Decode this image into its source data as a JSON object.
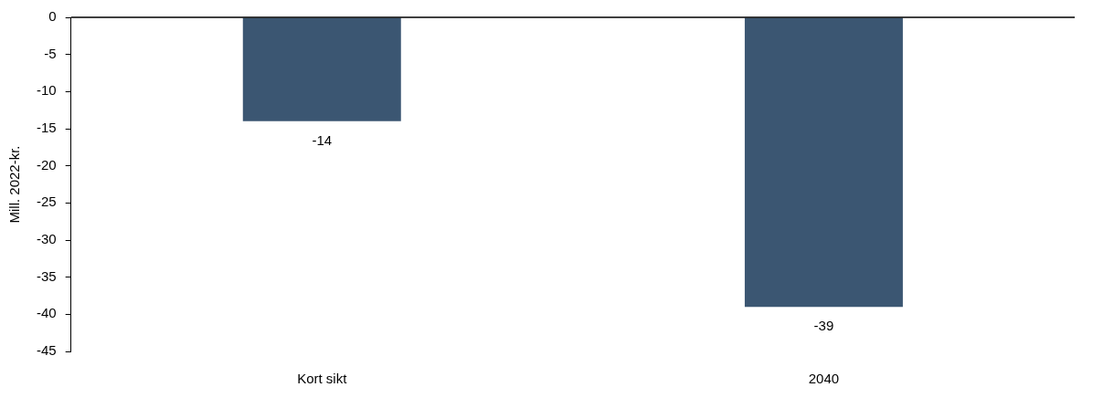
{
  "chart_data": {
    "type": "bar",
    "ylabel": "Mill. 2022-kr.",
    "categories": [
      "Kort sikt",
      "2040"
    ],
    "values": [
      -14,
      -39
    ],
    "color": "#3b5672",
    "ylim": [
      -45,
      0
    ],
    "yticks": [
      -45,
      -40,
      -35,
      -30,
      -25,
      -20,
      -15,
      -10,
      -5,
      0
    ],
    "grid": false,
    "legend": false,
    "data_labels": true
  }
}
